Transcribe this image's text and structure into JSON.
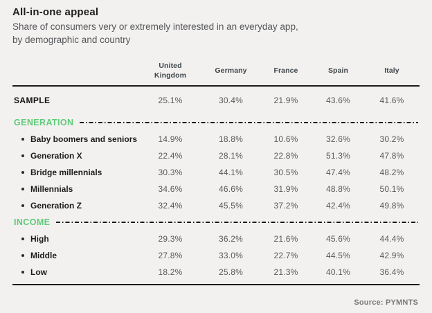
{
  "title": "All-in-one appeal",
  "subtitle": "Share of consumers very or extremely interested in an everyday app, by demographic and country",
  "source": "Source: PYMNTS",
  "colors": {
    "background": "#f2f1ef",
    "accent_green": "#5ecb78",
    "title_text": "#1d1d1b",
    "subtitle_text": "#55565a",
    "header_text": "#3e4449",
    "value_text": "#58595b",
    "rule": "#1a1a1a"
  },
  "chart_data": {
    "type": "table",
    "title": "All-in-one appeal",
    "subtitle": "Share of consumers very or extremely interested in an everyday app, by demographic and country",
    "columns": [
      "United Kingdom",
      "Germany",
      "France",
      "Spain",
      "Italy"
    ],
    "rows": [
      {
        "type": "sample",
        "label": "SAMPLE",
        "values": [
          "25.1%",
          "30.4%",
          "21.9%",
          "43.6%",
          "41.6%"
        ]
      },
      {
        "type": "section",
        "label": "GENERATION",
        "values": []
      },
      {
        "type": "item",
        "label": "Baby boomers and seniors",
        "values": [
          "14.9%",
          "18.8%",
          "10.6%",
          "32.6%",
          "30.2%"
        ]
      },
      {
        "type": "item",
        "label": "Generation X",
        "values": [
          "22.4%",
          "28.1%",
          "22.8%",
          "51.3%",
          "47.8%"
        ]
      },
      {
        "type": "item",
        "label": "Bridge millennials",
        "values": [
          "30.3%",
          "44.1%",
          "30.5%",
          "47.4%",
          "48.2%"
        ]
      },
      {
        "type": "item",
        "label": "Millennials",
        "values": [
          "34.6%",
          "46.6%",
          "31.9%",
          "48.8%",
          "50.1%"
        ]
      },
      {
        "type": "item",
        "label": "Generation Z",
        "values": [
          "32.4%",
          "45.5%",
          "37.2%",
          "42.4%",
          "49.8%"
        ]
      },
      {
        "type": "section",
        "label": "INCOME",
        "values": []
      },
      {
        "type": "item",
        "label": "High",
        "values": [
          "29.3%",
          "36.2%",
          "21.6%",
          "45.6%",
          "44.4%"
        ]
      },
      {
        "type": "item",
        "label": "Middle",
        "values": [
          "27.8%",
          "33.0%",
          "22.7%",
          "44.5%",
          "42.9%"
        ]
      },
      {
        "type": "item",
        "label": "Low",
        "values": [
          "18.2%",
          "25.8%",
          "21.3%",
          "40.1%",
          "36.4%"
        ]
      }
    ],
    "source": "Source: PYMNTS"
  }
}
